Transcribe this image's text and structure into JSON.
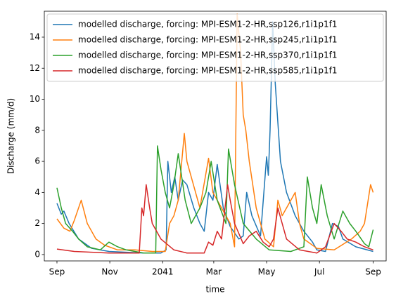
{
  "chart_data": {
    "type": "line",
    "xlabel": "time",
    "ylabel": "Discharge (mm/d)",
    "xlim": [
      -14.6,
      380
    ],
    "ylim": [
      -0.41,
      15.67
    ],
    "xticks": [
      {
        "value": 0,
        "label": "Sep"
      },
      {
        "value": 61,
        "label": "Nov"
      },
      {
        "value": 122,
        "label": "2041"
      },
      {
        "value": 181,
        "label": "Mar"
      },
      {
        "value": 242,
        "label": "May"
      },
      {
        "value": 303,
        "label": "Jul"
      },
      {
        "value": 365,
        "label": "Sep"
      }
    ],
    "yticks": [
      0,
      2,
      4,
      6,
      8,
      10,
      12,
      14
    ],
    "legend": "upper right",
    "series": [
      {
        "name": "modelled discharge, forcing: MPI-ESM1-2-HR,ssp126,r1i1p1f1",
        "color": "#1f77b4",
        "x": [
          0,
          5,
          8,
          14,
          25,
          40,
          60,
          80,
          100,
          120,
          126,
          128,
          132,
          136,
          140,
          145,
          150,
          158,
          165,
          170,
          175,
          180,
          185,
          192,
          200,
          210,
          215,
          219,
          225,
          235,
          242,
          244,
          246,
          249,
          252,
          258,
          265,
          275,
          285,
          295,
          300,
          310,
          318,
          325,
          330,
          345,
          365
        ],
        "values": [
          3.3,
          2.6,
          2.8,
          2.0,
          1.0,
          0.4,
          0.2,
          0.15,
          0.1,
          0.1,
          0.3,
          6.0,
          4.0,
          5.0,
          3.5,
          4.8,
          4.5,
          3.0,
          2.0,
          1.5,
          4.0,
          3.5,
          5.8,
          3.0,
          1.8,
          1.0,
          1.2,
          4.0,
          2.5,
          1.2,
          6.3,
          5.1,
          8.0,
          15.0,
          11.0,
          6.0,
          4.0,
          2.5,
          1.5,
          0.8,
          0.3,
          0.2,
          2.0,
          1.8,
          1.0,
          0.5,
          0.2
        ]
      },
      {
        "name": "modelled discharge, forcing: MPI-ESM1-2-HR,ssp245,r1i1p1f1",
        "color": "#ff7f0e",
        "x": [
          0,
          8,
          15,
          20,
          28,
          35,
          45,
          55,
          70,
          90,
          110,
          125,
          130,
          135,
          140,
          147,
          150,
          155,
          165,
          175,
          180,
          190,
          200,
          205,
          208,
          212,
          215,
          218,
          222,
          230,
          240,
          250,
          255,
          260,
          265,
          275,
          280,
          285,
          300,
          320,
          340,
          350,
          355,
          362,
          365
        ],
        "values": [
          2.3,
          1.7,
          1.5,
          2.2,
          3.5,
          2.0,
          1.0,
          0.6,
          0.3,
          0.3,
          0.2,
          0.2,
          2.0,
          2.5,
          3.5,
          7.8,
          6.0,
          5.0,
          3.0,
          6.2,
          4.0,
          3.0,
          2.0,
          0.5,
          15.5,
          13.0,
          9.0,
          8.0,
          6.0,
          3.0,
          1.0,
          0.5,
          3.5,
          2.5,
          3.0,
          4.0,
          2.0,
          1.0,
          0.4,
          0.3,
          1.0,
          1.5,
          2.0,
          4.5,
          4.0
        ]
      },
      {
        "name": "modelled discharge, forcing: MPI-ESM1-2-HR,ssp370,r1i1p1f1",
        "color": "#2ca02c",
        "x": [
          0,
          5,
          10,
          18,
          25,
          35,
          50,
          60,
          70,
          80,
          100,
          114,
          116,
          120,
          125,
          130,
          135,
          140,
          148,
          155,
          165,
          172,
          178,
          185,
          195,
          198,
          205,
          215,
          230,
          245,
          270,
          285,
          289,
          295,
          300,
          305,
          312,
          320,
          330,
          338,
          345,
          355,
          360,
          365
        ],
        "values": [
          4.3,
          3.0,
          2.0,
          1.5,
          1.0,
          0.5,
          0.3,
          0.8,
          0.5,
          0.3,
          0.1,
          0.1,
          7.0,
          5.5,
          4.0,
          3.0,
          4.5,
          6.5,
          3.5,
          2.0,
          3.0,
          4.0,
          6.0,
          3.5,
          2.0,
          6.8,
          4.5,
          2.0,
          1.0,
          0.3,
          0.2,
          0.5,
          5.0,
          3.0,
          2.0,
          4.5,
          2.5,
          1.0,
          2.8,
          2.0,
          1.5,
          0.7,
          0.5,
          1.6
        ]
      },
      {
        "name": "modelled discharge, forcing: MPI-ESM1-2-HR,ssp585,r1i1p1f1",
        "color": "#d62728",
        "x": [
          0,
          20,
          40,
          60,
          80,
          95,
          98,
          100,
          103,
          107,
          110,
          120,
          135,
          150,
          170,
          175,
          180,
          185,
          190,
          197,
          200,
          205,
          215,
          222,
          230,
          238,
          245,
          250,
          255,
          260,
          265,
          280,
          300,
          310,
          320,
          328,
          335,
          345,
          355,
          365
        ],
        "values": [
          0.35,
          0.2,
          0.15,
          0.1,
          0.1,
          0.1,
          3.0,
          2.5,
          4.5,
          3.0,
          2.0,
          1.0,
          0.3,
          0.1,
          0.1,
          0.8,
          0.6,
          1.5,
          1.0,
          4.5,
          3.5,
          2.0,
          0.7,
          1.2,
          1.5,
          0.8,
          0.5,
          1.0,
          3.0,
          2.0,
          1.0,
          0.3,
          0.1,
          0.5,
          2.0,
          1.5,
          1.0,
          0.8,
          0.5,
          0.3
        ]
      }
    ]
  }
}
